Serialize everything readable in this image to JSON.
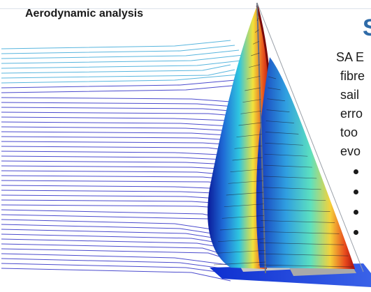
{
  "header": {
    "section_label": "Aerodynamic analysis"
  },
  "title": {
    "text": "S",
    "color": "#2f6ba8"
  },
  "body": {
    "lines": [
      "SA E",
      "fibre",
      "sail",
      "erro",
      "too",
      "evo"
    ],
    "bullet_count": 4
  },
  "image": {
    "icon": "sail-pressure-simulation-icon",
    "colormap": [
      "#0a1a9a",
      "#1f6bd6",
      "#2fc6e0",
      "#f2e23a",
      "#e8541e",
      "#b01010"
    ],
    "streamline_colors": [
      "#2a2ac4",
      "#3aa8d8"
    ]
  }
}
